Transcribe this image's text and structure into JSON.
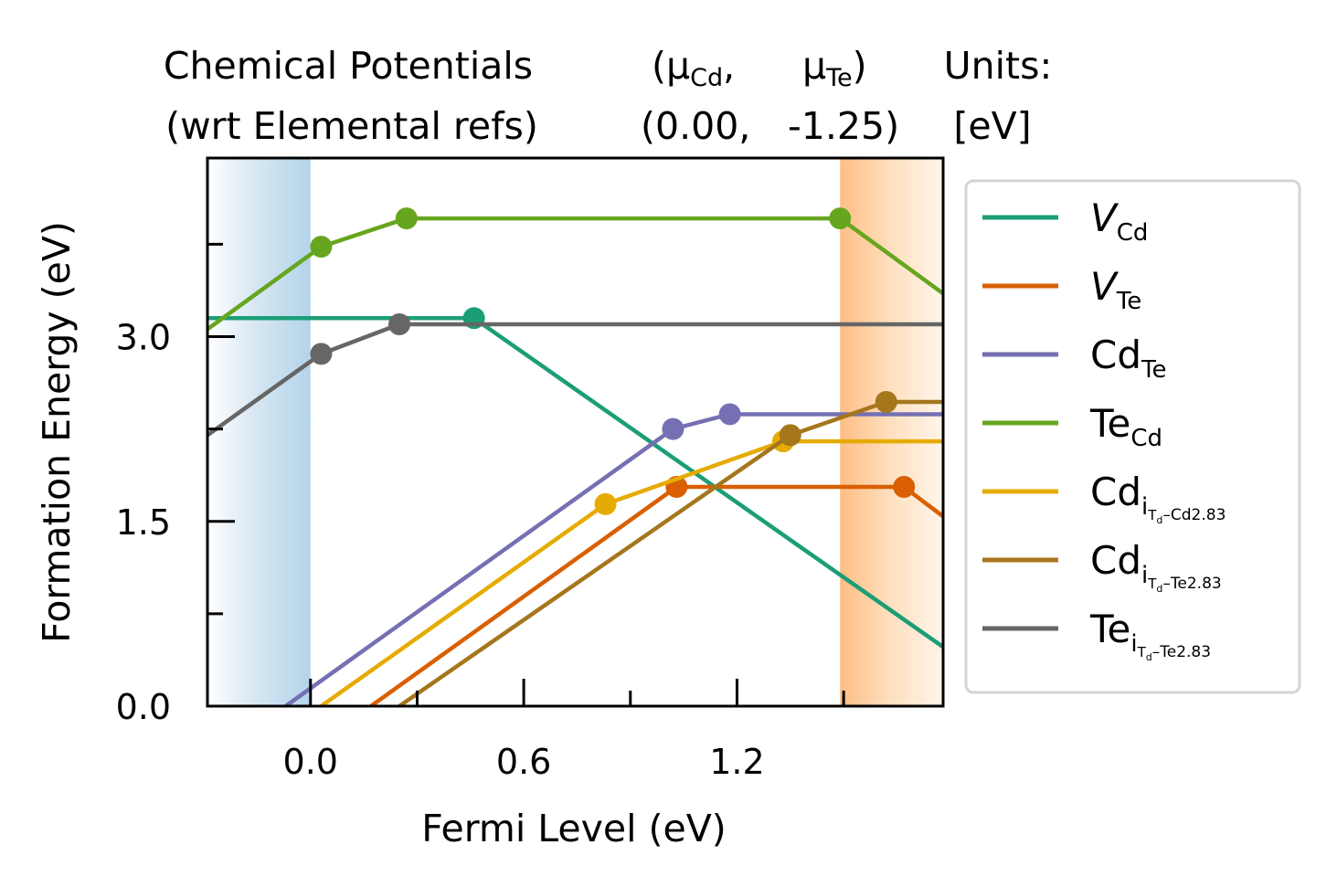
{
  "header": {
    "cp_title_line1": "Chemical Potentials",
    "cp_title_line2": "(wrt Elemental refs)",
    "mu_open": "(μ",
    "mu_cd_sub": "Cd",
    "mu_comma": ",",
    "mu_te": "μ",
    "mu_te_sub": "Te",
    "mu_close": ")",
    "mu_values_cd": "(0.00,",
    "mu_values_te": "-1.25)",
    "units_line1": "Units:",
    "units_line2": "[eV]"
  },
  "chart_data": {
    "type": "line",
    "xlabel": "Fermi Level (eV)",
    "ylabel": "Formation Energy (eV)",
    "xlim": [
      -0.29,
      1.78
    ],
    "ylim": [
      0.0,
      4.45
    ],
    "x_ticks": [
      0.0,
      0.6,
      1.2
    ],
    "x_tick_labels": [
      "0.0",
      "0.6",
      "1.2"
    ],
    "x_minor_ticks": [
      0.3,
      0.9,
      1.5
    ],
    "y_ticks": [
      0.0,
      1.5,
      3.0
    ],
    "y_tick_labels": [
      "0.0",
      "1.5",
      "3.0"
    ],
    "y_minor_ticks": [
      0.75,
      2.25,
      3.75
    ],
    "shaded_regions": [
      {
        "region": "valence band",
        "x": [
          -0.29,
          0.0
        ],
        "color": "#b3d4ea"
      },
      {
        "region": "conduction band",
        "x": [
          1.49,
          1.78
        ],
        "color": "#fdbe85"
      }
    ],
    "legend_position": "outside-right",
    "series": [
      {
        "name": "V",
        "name_sub": "Cd",
        "italic": true,
        "color": "#1b9e77",
        "points": [
          [
            -0.29,
            3.15
          ],
          [
            0.46,
            3.15
          ],
          [
            1.78,
            0.48
          ]
        ],
        "markers": [
          [
            0.46,
            3.15
          ]
        ]
      },
      {
        "name": "V",
        "name_sub": "Te",
        "italic": true,
        "color": "#d95f02",
        "points": [
          [
            0.17,
            0.0
          ],
          [
            1.03,
            1.78
          ],
          [
            1.67,
            1.78
          ],
          [
            1.78,
            1.54
          ]
        ],
        "markers": [
          [
            1.03,
            1.78
          ],
          [
            1.67,
            1.78
          ]
        ]
      },
      {
        "name": "Cd",
        "name_sub": "Te",
        "color": "#7570b3",
        "points": [
          [
            -0.07,
            0.0
          ],
          [
            1.02,
            2.25
          ],
          [
            1.18,
            2.37
          ],
          [
            1.78,
            2.37
          ]
        ],
        "markers": [
          [
            1.02,
            2.25
          ],
          [
            1.18,
            2.37
          ]
        ]
      },
      {
        "name": "Te",
        "name_sub": "Cd",
        "color": "#66a61e",
        "points": [
          [
            -0.29,
            3.06
          ],
          [
            0.03,
            3.73
          ],
          [
            0.27,
            3.96
          ],
          [
            1.49,
            3.96
          ],
          [
            1.78,
            3.35
          ]
        ],
        "markers": [
          [
            0.03,
            3.73
          ],
          [
            0.27,
            3.96
          ],
          [
            1.49,
            3.96
          ]
        ]
      },
      {
        "name": "Cd",
        "name_sub": "i",
        "name_subsub": "T",
        "name_subsubsub": "d",
        "name_subtail": "–Cd2.83",
        "color": "#e6ab02",
        "points": [
          [
            0.03,
            0.0
          ],
          [
            0.83,
            1.64
          ],
          [
            1.33,
            2.15
          ],
          [
            1.78,
            2.15
          ]
        ],
        "markers": [
          [
            0.83,
            1.64
          ],
          [
            1.33,
            2.15
          ]
        ]
      },
      {
        "name": "Cd",
        "name_sub": "i",
        "name_subsub": "T",
        "name_subsubsub": "d",
        "name_subtail": "–Te2.83",
        "color": "#a6761d",
        "points": [
          [
            0.25,
            0.0
          ],
          [
            1.35,
            2.2
          ],
          [
            1.62,
            2.47
          ],
          [
            1.78,
            2.47
          ]
        ],
        "markers": [
          [
            1.35,
            2.2
          ],
          [
            1.62,
            2.47
          ]
        ]
      },
      {
        "name": "Te",
        "name_sub": "i",
        "name_subsub": "T",
        "name_subsubsub": "d",
        "name_subtail": "–Te2.83",
        "color": "#666666",
        "points": [
          [
            -0.29,
            2.2
          ],
          [
            0.03,
            2.86
          ],
          [
            0.25,
            3.1
          ],
          [
            1.78,
            3.1
          ]
        ],
        "markers": [
          [
            0.03,
            2.86
          ],
          [
            0.25,
            3.1
          ]
        ]
      }
    ]
  }
}
